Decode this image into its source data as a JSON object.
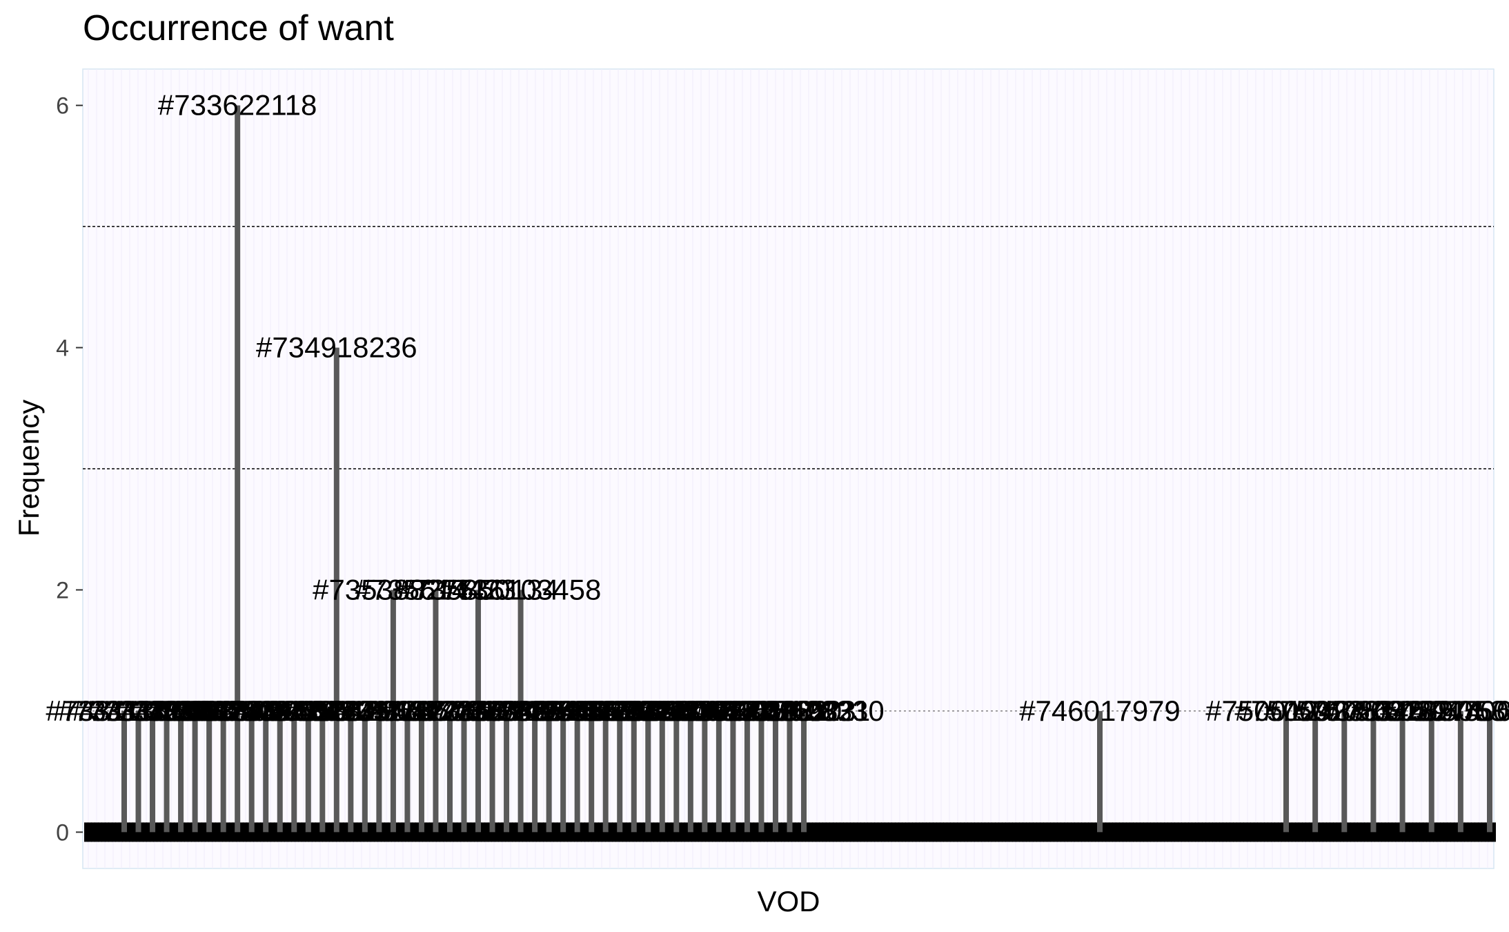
{
  "chart_data": {
    "type": "bar",
    "title": "Occurrence of want",
    "xlabel": "VOD",
    "ylabel": "Frequency",
    "ylim": [
      -0.3,
      6.3
    ],
    "yticks": [
      0,
      2,
      4,
      6
    ],
    "grid": "dashed horizontal lines at 3 and 5, light dotted vertical minor grid",
    "background": "#fcfaff",
    "bar_color": "#595959",
    "zero_marker_color": "#000000",
    "categories": [
      "#733111004",
      "#733134536",
      "#733187451",
      "#733255678",
      "#733290124",
      "#733398710",
      "#733412509",
      "#733565432",
      "#733622118",
      "#733708945",
      "#733792650",
      "#734015823",
      "#734120744",
      "#734634839",
      "#734802311",
      "#734918236",
      "#735012378",
      "#735119642",
      "#735201877",
      "#735388275",
      "#735461203",
      "#735537786",
      "#735614423",
      "#735700128",
      "#735789011",
      "#735850134",
      "#735927495",
      "#736014577",
      "#736103458",
      "#736187432",
      "#736251847",
      "#736325110",
      "#736402914",
      "#736487301",
      "#736559918",
      "#736630241",
      "#736711562",
      "#736789430",
      "#736855702",
      "#736930147",
      "#737004812",
      "#737088655",
      "#737162019",
      "#737240388",
      "#737318922",
      "#737397650",
      "#737471023",
      "#737549821",
      "#737628330",
      "#746017979",
      "#750012437",
      "#750092381",
      "#750175340",
      "#750263289",
      "#750318274",
      "#750394506",
      "#750475033",
      "#750538803"
    ],
    "values": [
      1,
      1,
      1,
      1,
      1,
      1,
      1,
      1,
      6,
      1,
      1,
      1,
      1,
      1,
      1,
      4,
      1,
      1,
      1,
      2,
      1,
      1,
      2,
      1,
      1,
      2,
      1,
      1,
      2,
      1,
      1,
      1,
      1,
      1,
      1,
      1,
      1,
      1,
      1,
      1,
      1,
      1,
      1,
      1,
      1,
      1,
      1,
      1,
      1,
      1,
      1,
      1,
      1,
      1,
      1,
      1,
      1,
      1
    ]
  }
}
